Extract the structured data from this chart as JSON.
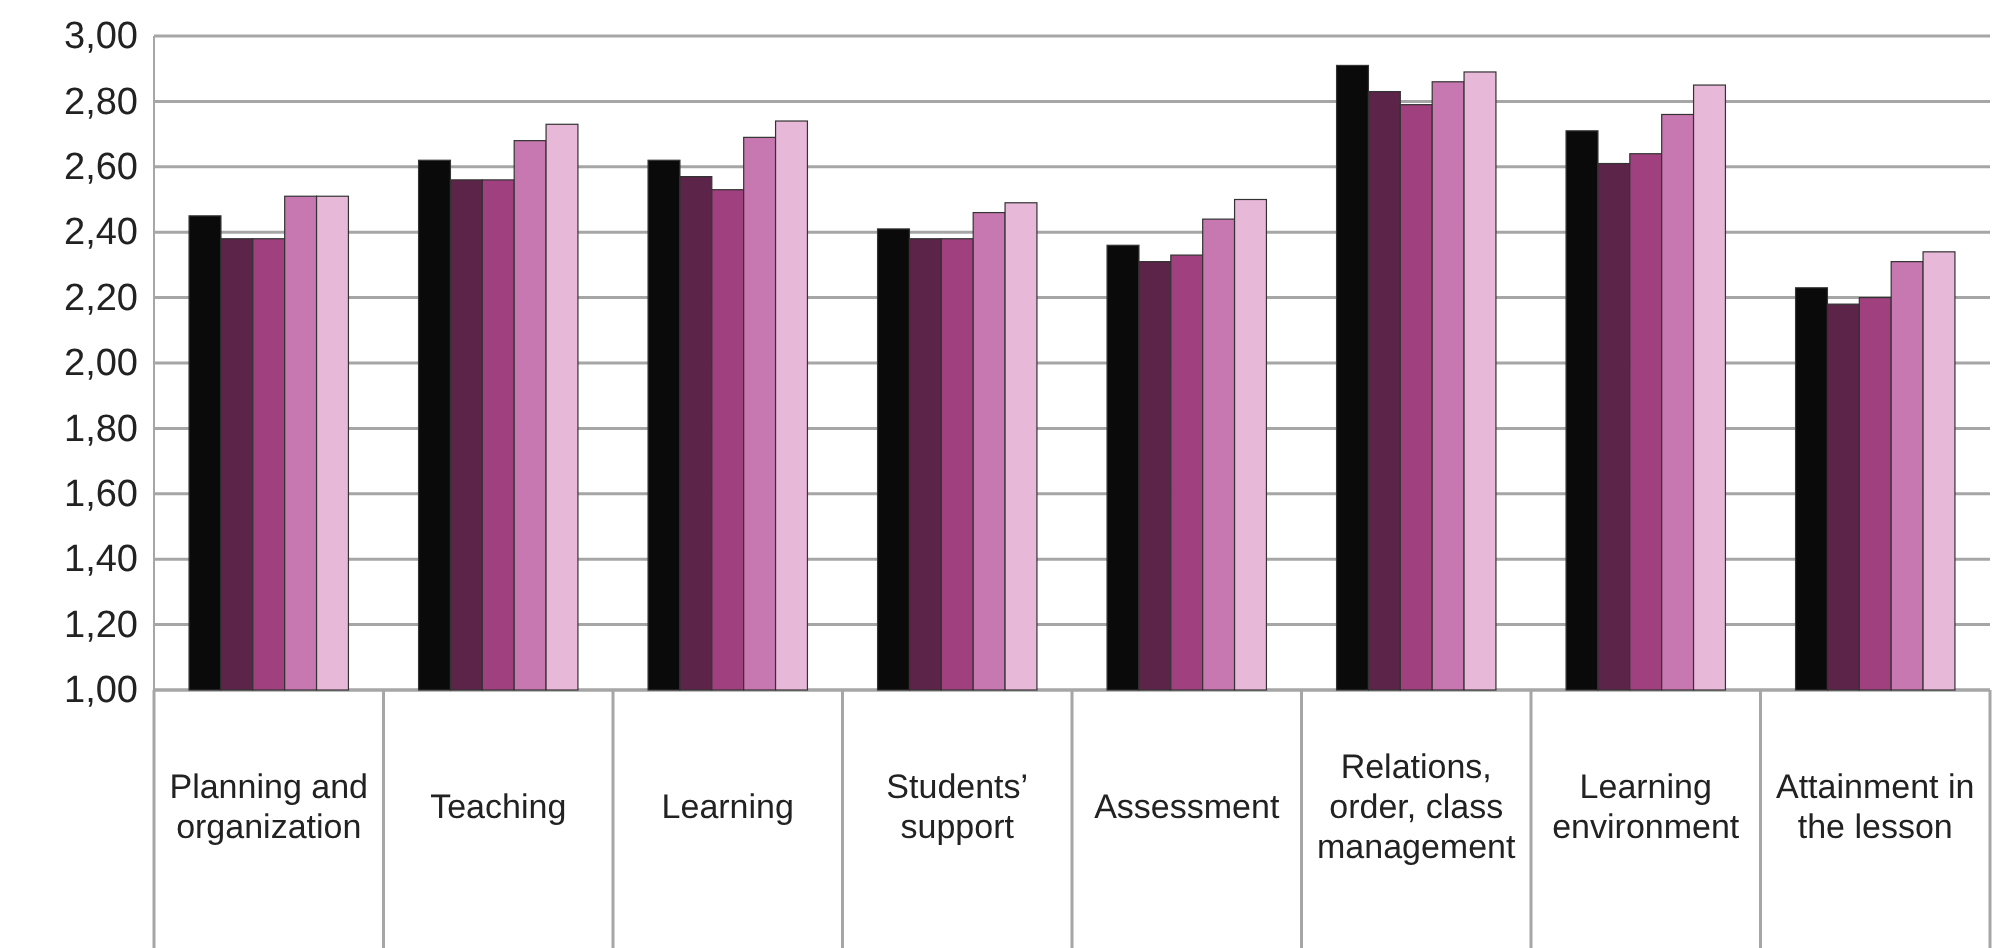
{
  "chart_data": {
    "type": "bar",
    "categories": [
      "Planning and organization",
      "Teaching",
      "Learning",
      "Students’ support",
      "Assessment",
      "Relations, order, class management",
      "Learning environment",
      "Attainment in the lesson"
    ],
    "series": [
      {
        "color": "#0a0a0a",
        "values": [
          2.45,
          2.62,
          2.62,
          2.41,
          2.36,
          2.91,
          2.71,
          2.23
        ]
      },
      {
        "color": "#5c2448",
        "values": [
          2.38,
          2.56,
          2.57,
          2.38,
          2.31,
          2.83,
          2.61,
          2.18
        ]
      },
      {
        "color": "#a0407f",
        "values": [
          2.38,
          2.56,
          2.53,
          2.38,
          2.33,
          2.79,
          2.64,
          2.2
        ]
      },
      {
        "color": "#c878b0",
        "values": [
          2.51,
          2.68,
          2.69,
          2.46,
          2.44,
          2.86,
          2.76,
          2.31
        ]
      },
      {
        "color": "#e8b8d8",
        "values": [
          2.51,
          2.73,
          2.74,
          2.49,
          2.5,
          2.89,
          2.85,
          2.34
        ]
      }
    ],
    "ylim": [
      1.0,
      3.0
    ],
    "yticks": [
      {
        "value": 1.0,
        "label": "1,00"
      },
      {
        "value": 1.2,
        "label": "1,20"
      },
      {
        "value": 1.4,
        "label": "1,40"
      },
      {
        "value": 1.6,
        "label": "1,60"
      },
      {
        "value": 1.8,
        "label": "1,80"
      },
      {
        "value": 2.0,
        "label": "2,00"
      },
      {
        "value": 2.2,
        "label": "2,20"
      },
      {
        "value": 2.4,
        "label": "2,40"
      },
      {
        "value": 2.6,
        "label": "2,60"
      },
      {
        "value": 2.8,
        "label": "2,80"
      },
      {
        "value": 3.0,
        "label": "3,00"
      }
    ],
    "grid": "y",
    "legend": false
  }
}
